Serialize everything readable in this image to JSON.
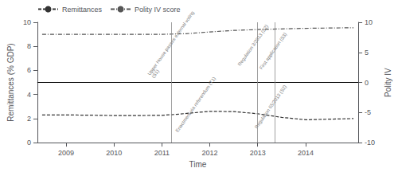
{
  "chart_data": {
    "type": "line",
    "xlabel": "Time",
    "ylabel": "Remittances (% GDP)",
    "y2label": "Polity IV",
    "xlim": [
      2008.4,
      2015.1
    ],
    "xticks": [
      2009,
      2010,
      2011,
      2012,
      2013,
      2014
    ],
    "ylim": [
      0,
      10
    ],
    "yticks": [
      0,
      2,
      4,
      6,
      8,
      10
    ],
    "y2lim": [
      -10,
      10
    ],
    "y2ticks": [
      -10,
      -5,
      0,
      5,
      10
    ],
    "grid": false,
    "legend": "upper left",
    "series": [
      {
        "name": "Remittances",
        "color": "#333333",
        "line_style": "dashed",
        "x": [
          2008.5,
          2009,
          2009.5,
          2010,
          2010.5,
          2011,
          2011.3,
          2012,
          2012.5,
          2013,
          2013.5,
          2014,
          2014.5,
          2015.0
        ],
        "values": [
          2.3,
          2.3,
          2.28,
          2.25,
          2.25,
          2.27,
          2.35,
          2.6,
          2.58,
          2.4,
          2.1,
          1.9,
          1.95,
          2.0
        ]
      },
      {
        "name": "Polity IV score",
        "color": "#555555",
        "line_style": "dashdot",
        "axis": "y2",
        "x": [
          2008.5,
          2009,
          2009.5,
          2010,
          2010.5,
          2011,
          2011.5,
          2012,
          2012.5,
          2013,
          2013.5,
          2014,
          2014.5,
          2015.0
        ],
        "values": [
          8.0,
          8.0,
          8.0,
          8.0,
          8.0,
          8.0,
          8.1,
          8.4,
          8.65,
          8.8,
          8.9,
          9.0,
          9.05,
          9.1
        ]
      }
    ],
    "hline": 5.0,
    "vlines": [
      2011.2,
      2013.0,
      2013.35
    ],
    "annotations": [
      {
        "text": "Upper House passes external voting\n(S1)",
        "x": 2010.85,
        "y": 5.3
      },
      {
        "text": "Regulation 3/2013 (S2)",
        "x": 2012.65,
        "y": 6.3
      },
      {
        "text": "First application (S3)",
        "x": 2013.1,
        "y": 6.0
      },
      {
        "text": "Enactment via referendum (T1)",
        "x": 2011.35,
        "y": 0.8
      },
      {
        "text": "Regulation 65/2013 (S2)",
        "x": 2013.0,
        "y": 1.1
      }
    ]
  }
}
